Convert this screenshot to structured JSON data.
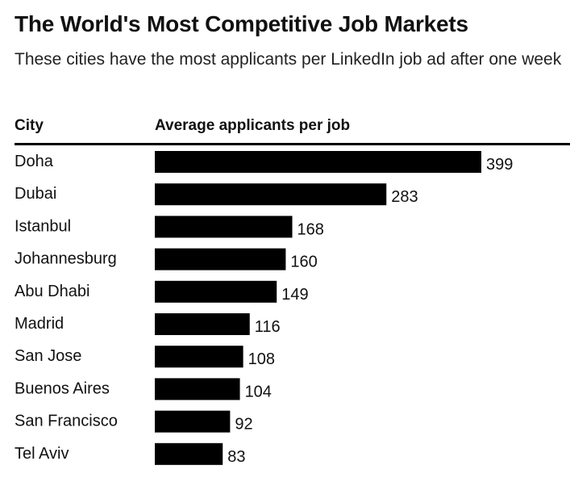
{
  "chart_data": {
    "type": "bar",
    "orientation": "horizontal",
    "title": "The World's Most Competitive Job Markets",
    "subtitle": "These cities have the most applicants per LinkedIn job ad after one week",
    "column_headers": {
      "category": "City",
      "value": "Average applicants per job"
    },
    "categories": [
      "Doha",
      "Dubai",
      "Istanbul",
      "Johannesburg",
      "Abu Dhabi",
      "Madrid",
      "San Jose",
      "Buenos Aires",
      "San Francisco",
      "Tel Aviv"
    ],
    "values": [
      399,
      283,
      168,
      160,
      149,
      116,
      108,
      104,
      92,
      83
    ],
    "bar_color": "#000000",
    "xlim": [
      0,
      399
    ]
  }
}
